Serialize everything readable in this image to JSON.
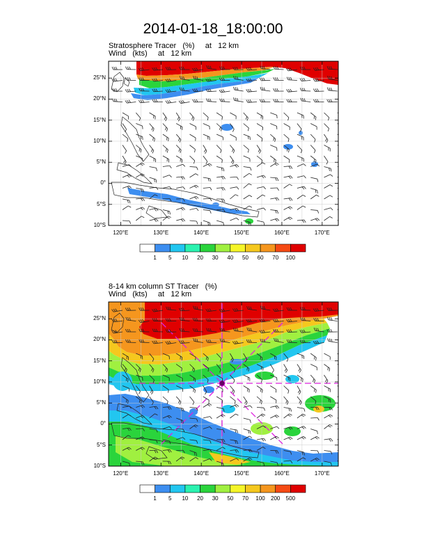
{
  "main_title": "2014-01-18_18:00:00",
  "panels": [
    {
      "id": "top",
      "title_line1": "Stratosphere Tracer   (%)     at   12 km",
      "title_line2": "Wind   (kts)     at   12 km",
      "colorbar_labels": [
        "1",
        "5",
        "10",
        "20",
        "30",
        "40",
        "50",
        "60",
        "70",
        "100"
      ],
      "colors": [
        "#ffffff",
        "#3d8ef0",
        "#22c6f0",
        "#2bf2b0",
        "#2ad43c",
        "#a0f040",
        "#f5f528",
        "#f5c81e",
        "#f5961e",
        "#f54a14",
        "#e00000"
      ]
    },
    {
      "id": "bottom",
      "title_line1": "8-14 km column ST Tracer   (%)",
      "title_line2": "Wind   (kts)     at   12 km",
      "colorbar_labels": [
        "1",
        "5",
        "10",
        "20",
        "30",
        "50",
        "70",
        "100",
        "200",
        "500"
      ],
      "colors": [
        "#ffffff",
        "#3d8ef0",
        "#22c6f0",
        "#2bf2b0",
        "#2ad43c",
        "#a0f040",
        "#f5f528",
        "#f5c81e",
        "#f5961e",
        "#f54a14",
        "#e00000"
      ],
      "marker": {
        "lon": 145,
        "lat": 10
      }
    }
  ],
  "map": {
    "lon_labels": [
      "120°E",
      "130°E",
      "140°E",
      "150°E",
      "160°E",
      "170°E"
    ],
    "lat_labels": [
      "25°N",
      "20°N",
      "15°N",
      "10°N",
      "5°N",
      "0°",
      "5°S",
      "10°S"
    ],
    "extent": {
      "lon_min": 117,
      "lon_max": 174,
      "lat_min": -10,
      "lat_max": 29
    }
  }
}
